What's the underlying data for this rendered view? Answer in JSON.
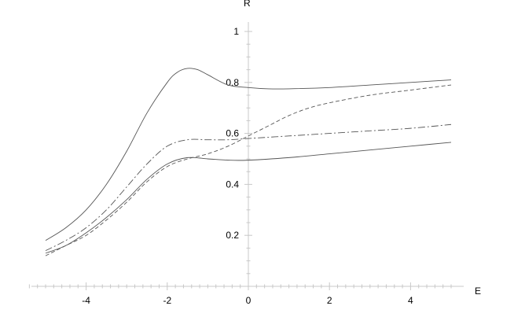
{
  "chart_data": {
    "type": "line",
    "xlabel": "E",
    "ylabel": "R",
    "xlim": [
      -5.5,
      5
    ],
    "ylim": [
      0,
      1
    ],
    "x_ticks": [
      "-4",
      "-2",
      "0",
      "2",
      "4"
    ],
    "y_ticks": [
      "0.2",
      "0.4",
      "0.6",
      "0.8",
      "1"
    ],
    "grid": false,
    "legend": "none",
    "series": [
      {
        "style": "solid",
        "color": "#555555",
        "x": [
          -5,
          -4.5,
          -4,
          -3.5,
          -3,
          -2.5,
          -2,
          -1.75,
          -1.5,
          -1.25,
          -1,
          -0.5,
          0,
          0.5,
          1,
          2,
          3,
          4,
          5
        ],
        "y": [
          0.18,
          0.23,
          0.3,
          0.4,
          0.53,
          0.68,
          0.8,
          0.84,
          0.855,
          0.85,
          0.83,
          0.79,
          0.78,
          0.775,
          0.775,
          0.78,
          0.79,
          0.8,
          0.81
        ]
      },
      {
        "style": "dashed",
        "color": "#555555",
        "x": [
          -5,
          -4.5,
          -4,
          -3.5,
          -3,
          -2.5,
          -2,
          -1.5,
          -1,
          -0.5,
          0,
          0.5,
          1,
          1.5,
          2,
          3,
          4,
          5
        ],
        "y": [
          0.12,
          0.16,
          0.2,
          0.26,
          0.33,
          0.41,
          0.47,
          0.5,
          0.52,
          0.55,
          0.59,
          0.63,
          0.67,
          0.7,
          0.72,
          0.75,
          0.77,
          0.79
        ]
      },
      {
        "style": "dash-dot",
        "color": "#555555",
        "x": [
          -5,
          -4.5,
          -4,
          -3.5,
          -3,
          -2.5,
          -2,
          -1.5,
          -1,
          -0.5,
          0,
          1,
          2,
          3,
          4,
          5
        ],
        "y": [
          0.14,
          0.18,
          0.23,
          0.3,
          0.39,
          0.48,
          0.55,
          0.575,
          0.575,
          0.575,
          0.58,
          0.59,
          0.6,
          0.61,
          0.62,
          0.635
        ]
      },
      {
        "style": "solid",
        "color": "#555555",
        "x": [
          -5,
          -4.5,
          -4,
          -3.5,
          -3,
          -2.5,
          -2,
          -1.5,
          -1,
          -0.5,
          0,
          1,
          2,
          3,
          4,
          5
        ],
        "y": [
          0.13,
          0.16,
          0.21,
          0.27,
          0.34,
          0.42,
          0.48,
          0.505,
          0.5,
          0.495,
          0.495,
          0.505,
          0.52,
          0.535,
          0.55,
          0.565
        ]
      }
    ]
  }
}
